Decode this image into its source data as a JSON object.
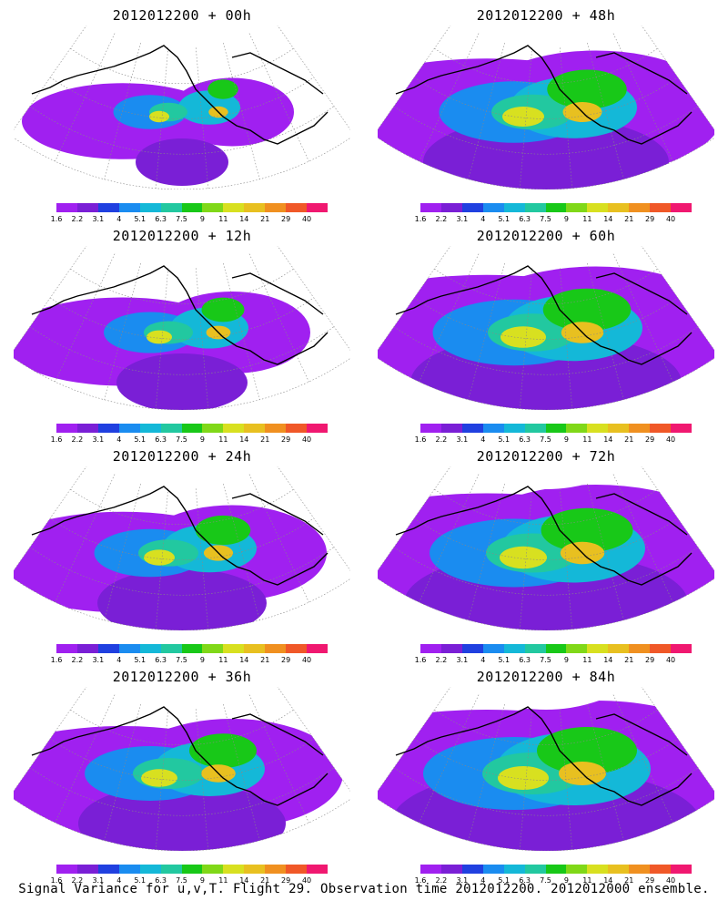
{
  "panels": [
    {
      "title": "2012012200 + 00h",
      "level": 0.15
    },
    {
      "title": "2012012200 + 48h",
      "level": 0.75
    },
    {
      "title": "2012012200 + 12h",
      "level": 0.3
    },
    {
      "title": "2012012200 + 60h",
      "level": 0.85
    },
    {
      "title": "2012012200 + 24h",
      "level": 0.45
    },
    {
      "title": "2012012200 + 72h",
      "level": 0.9
    },
    {
      "title": "2012012200 + 36h",
      "level": 0.6
    },
    {
      "title": "2012012200 + 84h",
      "level": 1.0
    }
  ],
  "colorbar": {
    "labels": [
      "1.6",
      "2.2",
      "3.1",
      "4",
      "5.1",
      "6.3",
      "7.5",
      "9",
      "11",
      "14",
      "21",
      "29",
      "40"
    ],
    "colors": [
      "#a020f0",
      "#7a1fd6",
      "#2040e0",
      "#1a8cf0",
      "#14b8d8",
      "#22c8a0",
      "#18c818",
      "#80d818",
      "#d8e020",
      "#e8c020",
      "#f09020",
      "#f05828",
      "#f01870"
    ]
  },
  "caption": "Signal Variance for u,v,T. Flight 29. Observation time 2012012200. 2012012000 ensemble."
}
